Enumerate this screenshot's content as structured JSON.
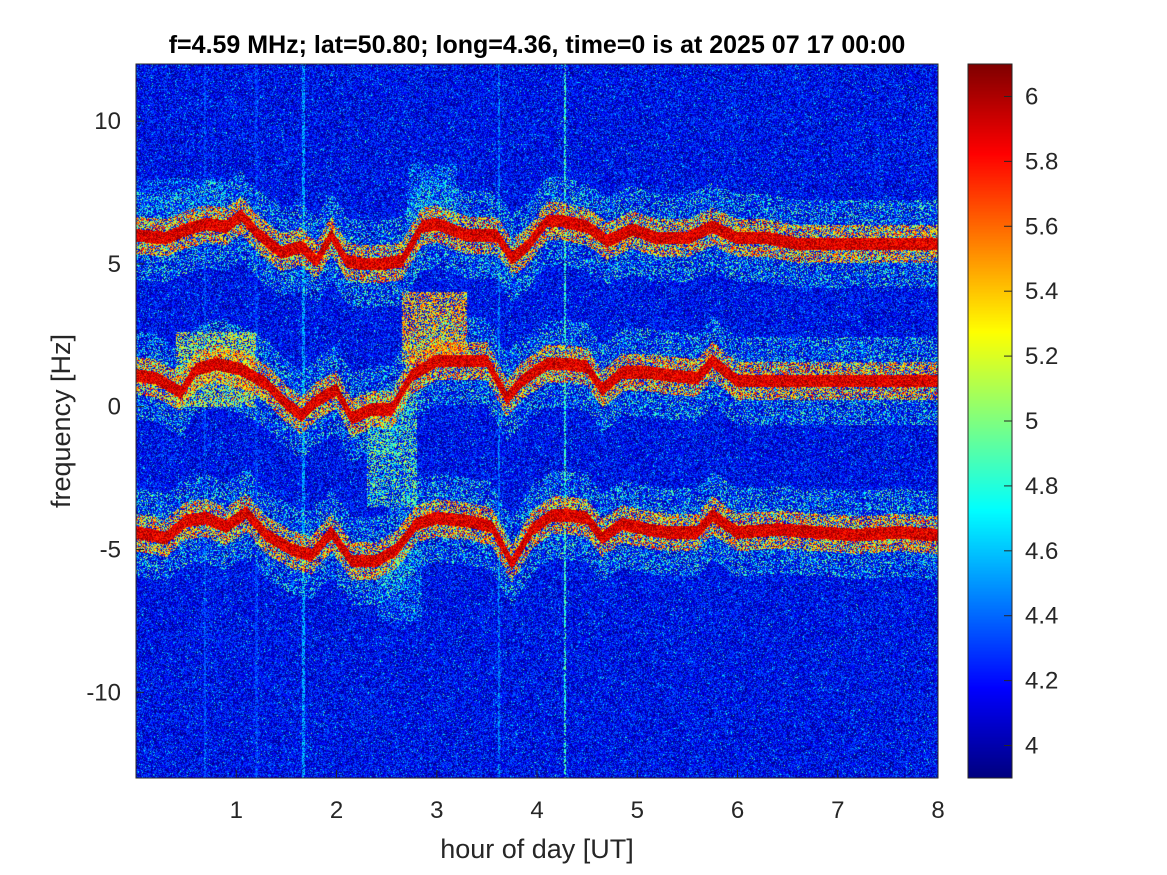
{
  "chart_data": {
    "type": "heatmap",
    "title": "f=4.59 MHz;  lat=50.80; long=4.36, time=0 is at 2025 07 17 00:00",
    "xlabel": "hour of day [UT]",
    "ylabel": "frequency [Hz]",
    "xlim": [
      0,
      8
    ],
    "ylim": [
      -13,
      12
    ],
    "x_ticks": [
      1,
      2,
      3,
      4,
      5,
      6,
      7,
      8
    ],
    "x_tick_labels": [
      "1",
      "2",
      "3",
      "4",
      "5",
      "6",
      "7",
      "8"
    ],
    "y_ticks": [
      -10,
      -5,
      0,
      5,
      10
    ],
    "y_tick_labels": [
      "-10",
      "-5",
      "0",
      "5",
      "10"
    ],
    "colormap": "jet",
    "color_range": [
      3.9,
      6.1
    ],
    "colorbar_ticks": [
      4,
      4.2,
      4.4,
      4.6,
      4.8,
      5,
      5.2,
      5.4,
      5.6,
      5.8,
      6
    ],
    "colorbar_tick_labels": [
      "4",
      "4.2",
      "4.4",
      "4.6",
      "4.8",
      "5",
      "5.2",
      "5.4",
      "5.6",
      "5.8",
      "6"
    ],
    "background_level": 4.15,
    "vertical_lines": [
      {
        "hour": 4.28,
        "level": 5.0
      },
      {
        "hour": 3.62,
        "level": 4.6
      },
      {
        "hour": 1.67,
        "level": 4.7
      },
      {
        "hour": 0.69,
        "level": 4.5
      },
      {
        "hour": 1.2,
        "level": 4.45
      }
    ],
    "traces": [
      {
        "points": [
          [
            0,
            6.0
          ],
          [
            0.3,
            5.9
          ],
          [
            0.5,
            6.2
          ],
          [
            0.7,
            6.4
          ],
          [
            0.9,
            6.3
          ],
          [
            1.05,
            6.7
          ],
          [
            1.2,
            6.1
          ],
          [
            1.45,
            5.4
          ],
          [
            1.65,
            5.6
          ],
          [
            1.8,
            5.1
          ],
          [
            1.95,
            6.0
          ],
          [
            2.1,
            5.1
          ],
          [
            2.25,
            5.0
          ],
          [
            2.45,
            5.0
          ],
          [
            2.65,
            5.1
          ],
          [
            2.85,
            6.3
          ],
          [
            3.0,
            6.4
          ],
          [
            3.3,
            6.0
          ],
          [
            3.6,
            6.0
          ],
          [
            3.75,
            5.2
          ],
          [
            3.9,
            5.6
          ],
          [
            4.1,
            6.5
          ],
          [
            4.25,
            6.5
          ],
          [
            4.5,
            6.3
          ],
          [
            4.7,
            5.8
          ],
          [
            4.95,
            6.2
          ],
          [
            5.2,
            5.9
          ],
          [
            5.5,
            5.9
          ],
          [
            5.75,
            6.3
          ],
          [
            6.0,
            5.9
          ],
          [
            6.3,
            5.9
          ],
          [
            6.6,
            5.7
          ],
          [
            7.0,
            5.7
          ],
          [
            7.4,
            5.7
          ],
          [
            7.7,
            5.7
          ],
          [
            8.0,
            5.7
          ]
        ],
        "level": 6.1,
        "width": 0.22
      },
      {
        "points": [
          [
            0,
            1.1
          ],
          [
            0.2,
            1.0
          ],
          [
            0.45,
            0.5
          ],
          [
            0.6,
            1.3
          ],
          [
            0.8,
            1.5
          ],
          [
            1.05,
            1.3
          ],
          [
            1.3,
            0.8
          ],
          [
            1.5,
            0.1
          ],
          [
            1.65,
            -0.3
          ],
          [
            1.8,
            0.2
          ],
          [
            2.0,
            0.6
          ],
          [
            2.15,
            -0.4
          ],
          [
            2.35,
            -0.1
          ],
          [
            2.55,
            -0.1
          ],
          [
            2.75,
            1.1
          ],
          [
            3.0,
            1.6
          ],
          [
            3.3,
            1.6
          ],
          [
            3.5,
            1.6
          ],
          [
            3.7,
            0.3
          ],
          [
            3.85,
            0.9
          ],
          [
            4.1,
            1.5
          ],
          [
            4.3,
            1.5
          ],
          [
            4.5,
            1.4
          ],
          [
            4.65,
            0.6
          ],
          [
            4.85,
            1.2
          ],
          [
            5.1,
            1.2
          ],
          [
            5.3,
            1.1
          ],
          [
            5.6,
            1.0
          ],
          [
            5.75,
            1.6
          ],
          [
            6.0,
            0.9
          ],
          [
            6.4,
            0.9
          ],
          [
            6.8,
            0.9
          ],
          [
            7.3,
            0.9
          ],
          [
            7.7,
            0.9
          ],
          [
            8.0,
            0.9
          ]
        ],
        "level": 6.1,
        "width": 0.22
      },
      {
        "points": [
          [
            0,
            -4.4
          ],
          [
            0.3,
            -4.6
          ],
          [
            0.5,
            -4.0
          ],
          [
            0.7,
            -3.9
          ],
          [
            0.9,
            -4.2
          ],
          [
            1.1,
            -3.7
          ],
          [
            1.3,
            -4.5
          ],
          [
            1.55,
            -5.0
          ],
          [
            1.75,
            -5.2
          ],
          [
            1.95,
            -4.4
          ],
          [
            2.15,
            -5.4
          ],
          [
            2.4,
            -5.4
          ],
          [
            2.6,
            -5.0
          ],
          [
            2.8,
            -4.1
          ],
          [
            3.0,
            -3.9
          ],
          [
            3.3,
            -4.0
          ],
          [
            3.55,
            -4.2
          ],
          [
            3.75,
            -5.5
          ],
          [
            3.95,
            -4.3
          ],
          [
            4.15,
            -3.8
          ],
          [
            4.3,
            -3.8
          ],
          [
            4.5,
            -3.9
          ],
          [
            4.65,
            -4.6
          ],
          [
            4.85,
            -4.1
          ],
          [
            5.1,
            -4.3
          ],
          [
            5.3,
            -4.4
          ],
          [
            5.6,
            -4.4
          ],
          [
            5.75,
            -3.8
          ],
          [
            6.0,
            -4.4
          ],
          [
            6.4,
            -4.3
          ],
          [
            6.8,
            -4.4
          ],
          [
            7.2,
            -4.5
          ],
          [
            7.6,
            -4.4
          ],
          [
            8.0,
            -4.5
          ]
        ],
        "level": 6.1,
        "width": 0.22
      }
    ],
    "blobs": [
      {
        "x": [
          0.4,
          1.2
        ],
        "y": [
          0.0,
          2.6
        ],
        "level": 5.6,
        "density": 0.5
      },
      {
        "x": [
          2.65,
          3.3
        ],
        "y": [
          1.5,
          4.0
        ],
        "level": 5.8,
        "density": 0.6
      },
      {
        "x": [
          2.3,
          2.8
        ],
        "y": [
          -3.5,
          0.5
        ],
        "level": 5.3,
        "density": 0.45
      },
      {
        "x": [
          2.7,
          3.2
        ],
        "y": [
          6.0,
          8.5
        ],
        "level": 5.0,
        "density": 0.35
      },
      {
        "x": [
          2.4,
          2.85
        ],
        "y": [
          -7.5,
          -5.0
        ],
        "level": 5.0,
        "density": 0.35
      },
      {
        "x": [
          0.0,
          0.9
        ],
        "y": [
          6.3,
          8.0
        ],
        "level": 4.9,
        "density": 0.25
      }
    ]
  }
}
